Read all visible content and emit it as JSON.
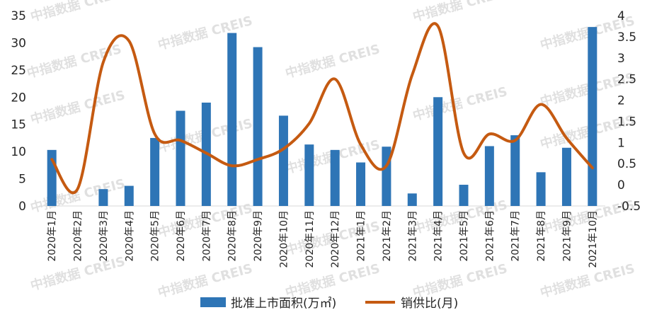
{
  "watermark": "中指数据 CREIS",
  "colors": {
    "bars": "#2E75B6",
    "line": "#C55A11",
    "axis": "#d9d9d9",
    "text": "#262626"
  },
  "chart_data": {
    "type": "bar",
    "categories": [
      "2020年1月",
      "2020年2月",
      "2020年3月",
      "2020年4月",
      "2020年5月",
      "2020年6月",
      "2020年7月",
      "2020年8月",
      "2020年9月",
      "2020年10月",
      "2020年11月",
      "2020年12月",
      "2021年1月",
      "2021年2月",
      "2021年3月",
      "2021年4月",
      "2021年5月",
      "2021年6月",
      "2021年7月",
      "2021年8月",
      "2021年9月",
      "2021年10月"
    ],
    "series": [
      {
        "name": "批准上市面积(万㎡)",
        "type": "bar",
        "axis": "left",
        "values": [
          10.3,
          0,
          3.1,
          3.7,
          12.5,
          17.5,
          19.0,
          31.8,
          29.2,
          16.6,
          11.3,
          10.3,
          8.0,
          10.9,
          2.3,
          20.0,
          3.9,
          11.0,
          13.0,
          6.2,
          10.7,
          32.9
        ]
      },
      {
        "name": "销供比(月)",
        "type": "line",
        "axis": "right",
        "smooth": true,
        "values": [
          0.6,
          -0.1,
          2.9,
          3.4,
          1.2,
          1.05,
          0.75,
          0.45,
          0.6,
          0.85,
          1.45,
          2.5,
          0.95,
          0.45,
          2.6,
          3.75,
          0.75,
          1.2,
          1.05,
          1.9,
          1.1,
          0.4
        ]
      }
    ],
    "y_left": {
      "min": 0,
      "max": 35,
      "ticks": [
        "0",
        "5",
        "10",
        "15",
        "20",
        "25",
        "30",
        "35"
      ]
    },
    "y_right": {
      "min": -0.5,
      "max": 4,
      "ticks": [
        "-0.5",
        "0",
        "0.5",
        "1",
        "1.5",
        "2",
        "2.5",
        "3",
        "3.5",
        "4"
      ]
    },
    "grid": false,
    "legend_position": "bottom",
    "legend": [
      {
        "label": "批准上市面积(万㎡)",
        "kind": "bar"
      },
      {
        "label": "销供比(月)",
        "kind": "line"
      }
    ]
  }
}
